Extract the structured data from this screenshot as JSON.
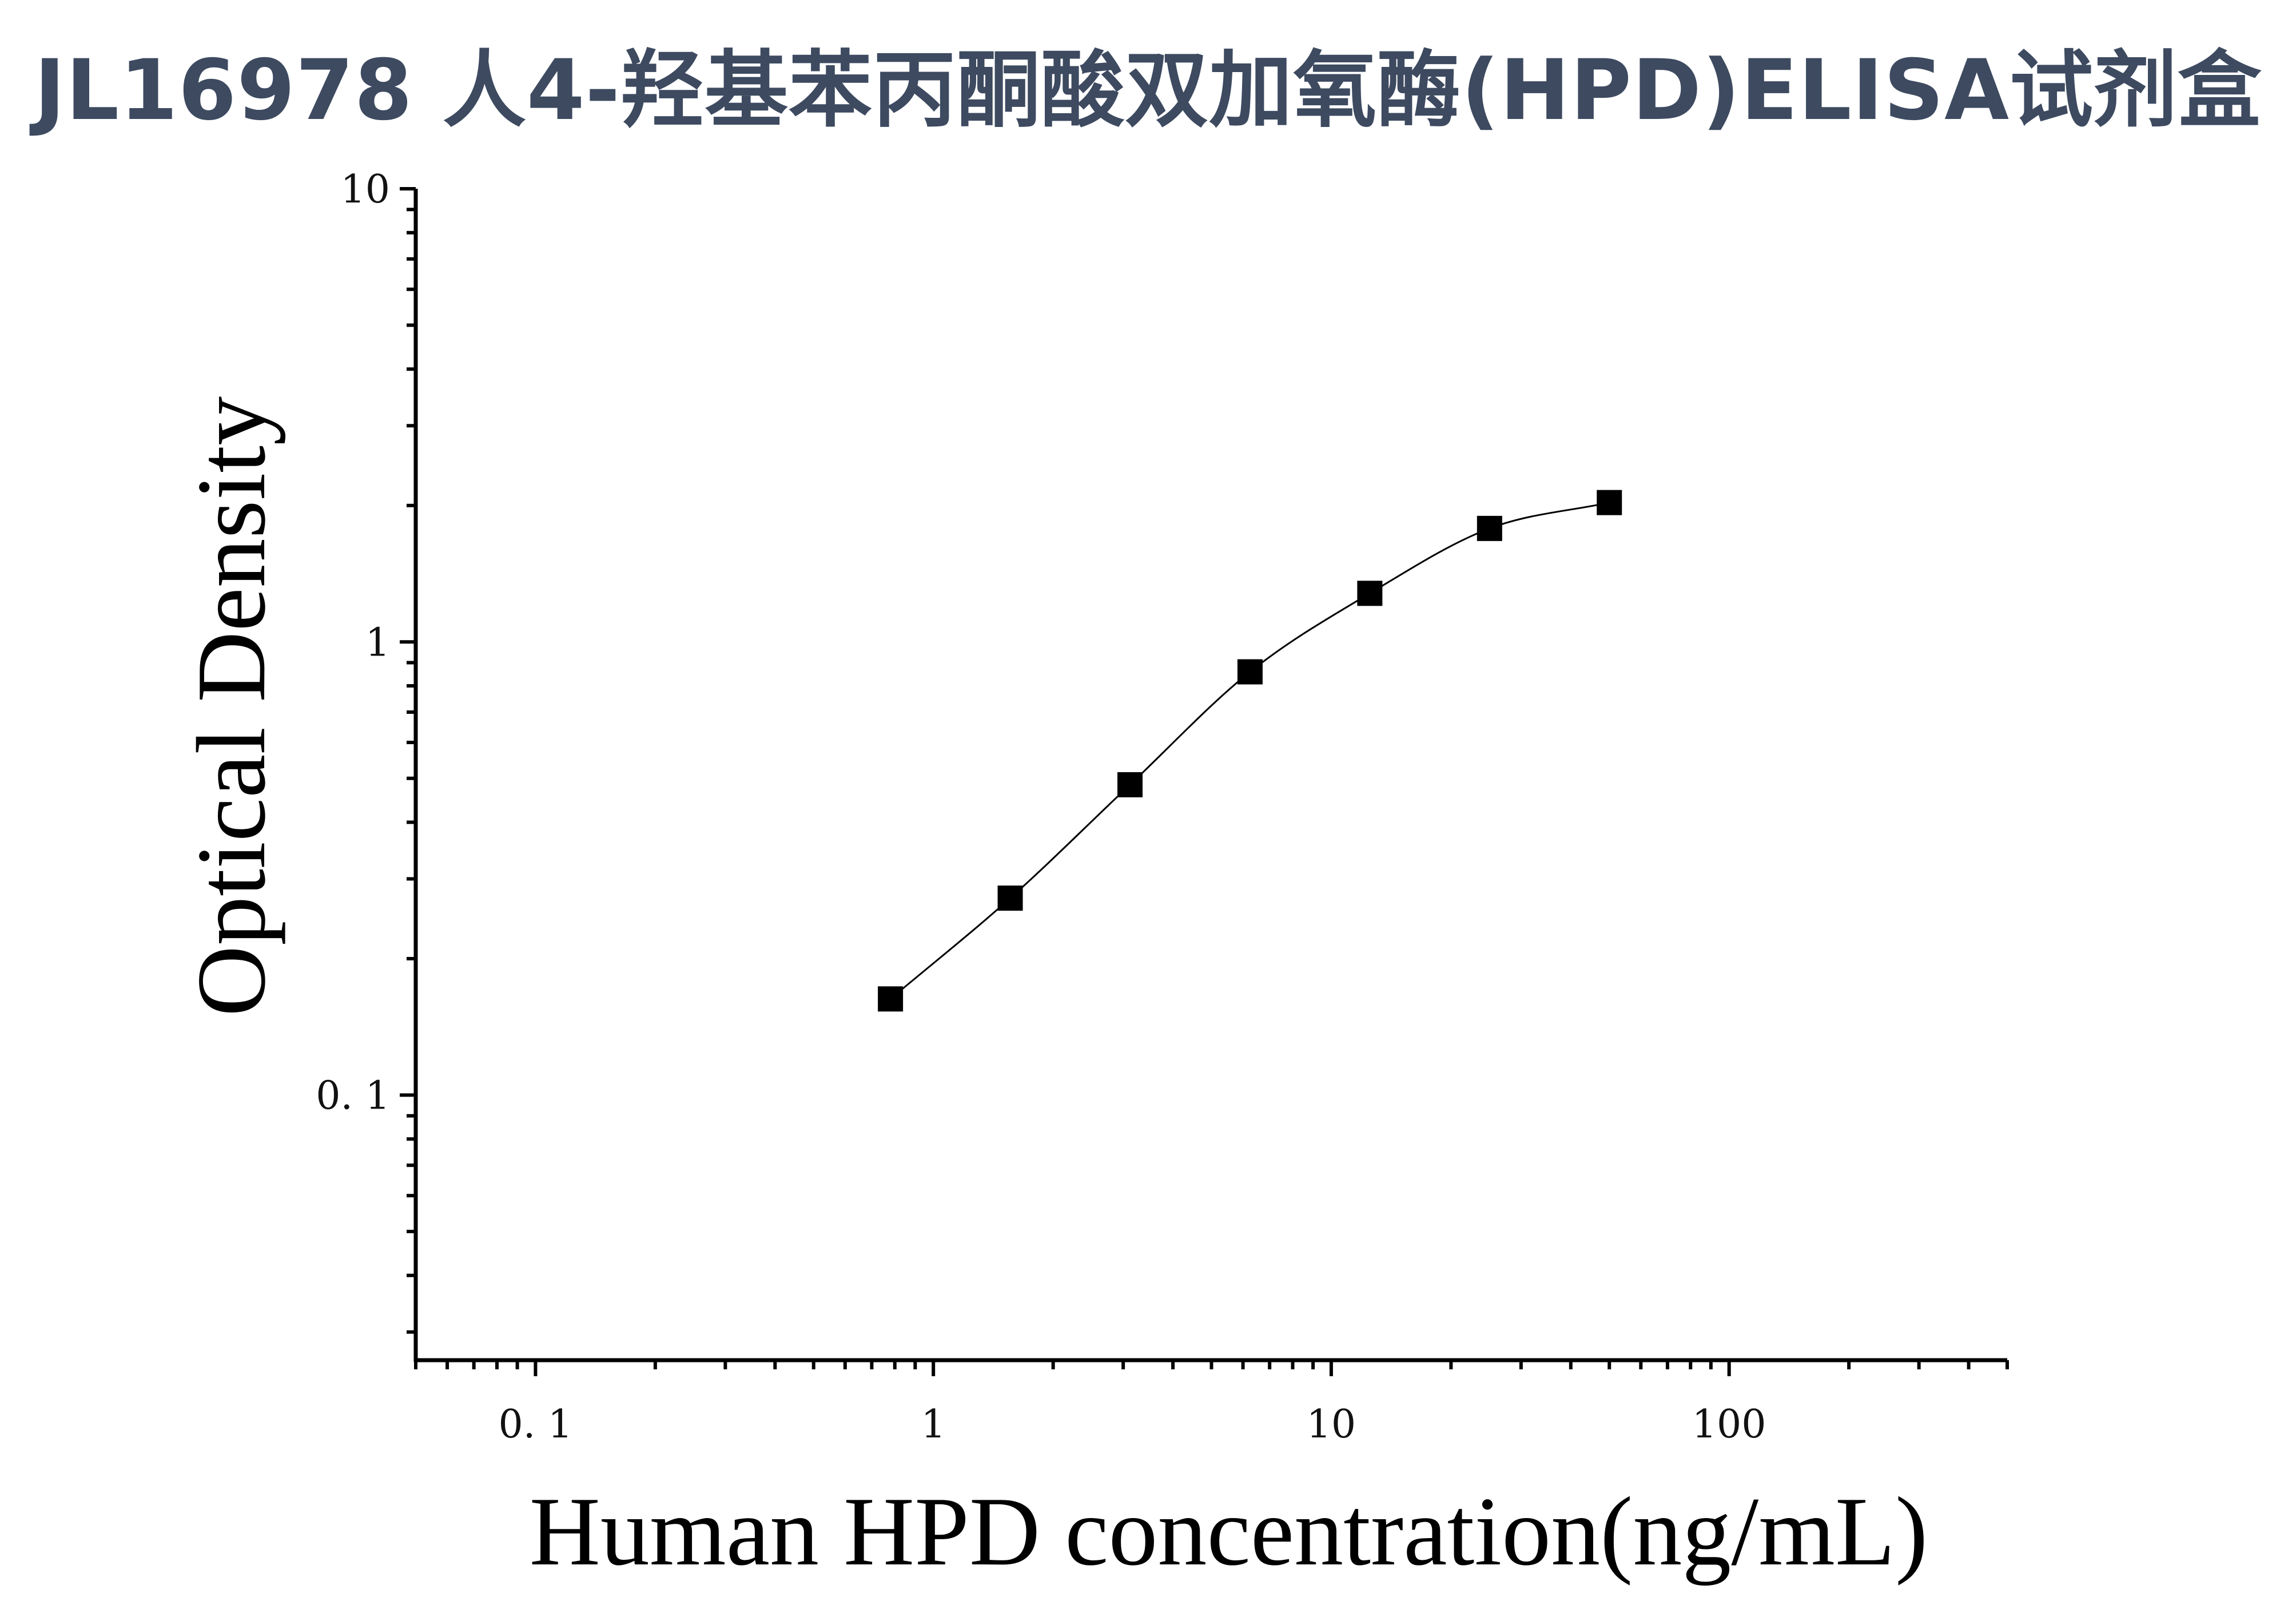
{
  "chart_data": {
    "type": "scatter",
    "title": "JL16978 人4-羟基苯丙酮酸双加氧酶(HPD)ELISA试剂盒",
    "xlabel": "Human HPD concentration(ng/mL)",
    "ylabel": "Optical Density",
    "xscale": "log",
    "yscale": "log",
    "xlim": [
      0.05,
      500
    ],
    "ylim": [
      0.026,
      10
    ],
    "x_ticks": [
      0.1,
      1,
      10,
      100
    ],
    "x_tick_labels": [
      "0. 1",
      "1",
      "10",
      "100"
    ],
    "y_ticks": [
      0.1,
      1,
      10
    ],
    "y_tick_labels": [
      "0. 1",
      "1",
      "10"
    ],
    "grid": false,
    "legend": "none",
    "series": [
      {
        "x": [
          0.78,
          1.56,
          3.12,
          6.25,
          12.5,
          25,
          50
        ],
        "y": [
          0.163,
          0.272,
          0.484,
          0.859,
          1.28,
          1.78,
          2.03
        ],
        "marker": "square",
        "fit_curve": true,
        "color": "#000000"
      }
    ]
  }
}
